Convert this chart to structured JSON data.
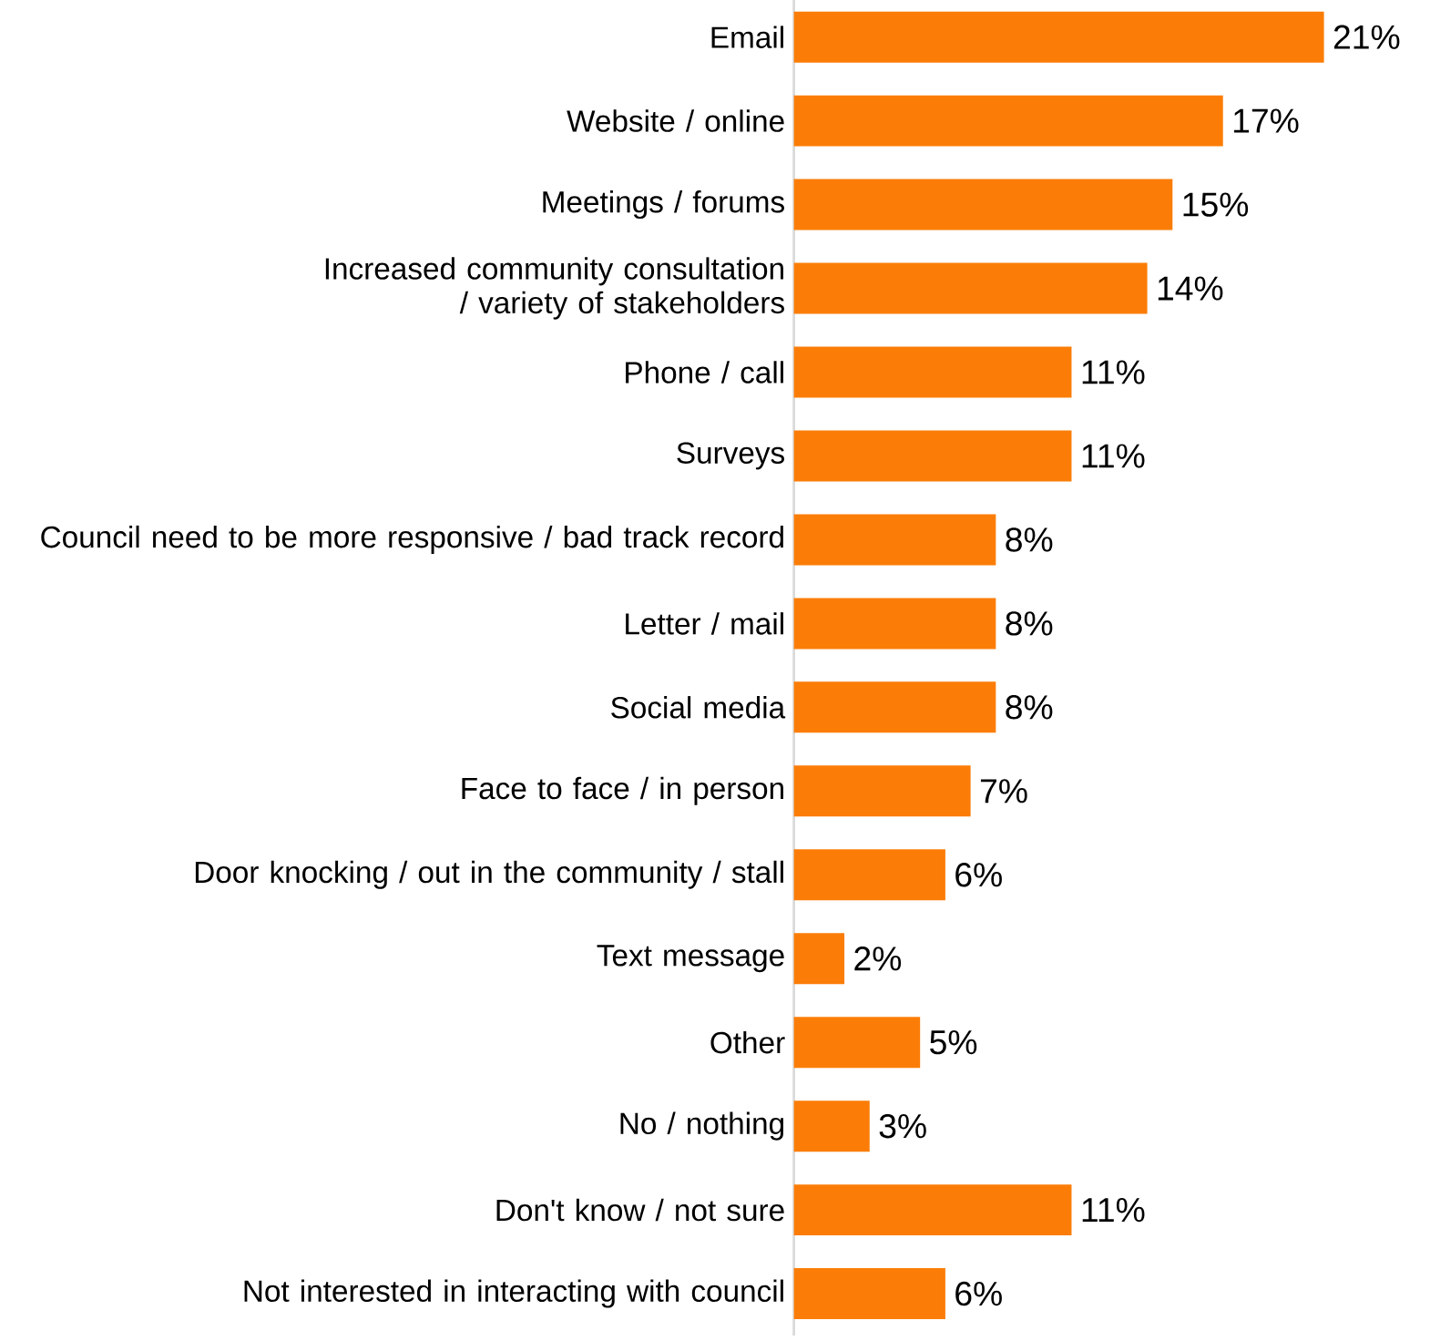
{
  "chart_data": {
    "type": "bar",
    "orientation": "horizontal",
    "color": "#fb7d07",
    "value_labels": [
      "21%",
      "17%",
      "15%",
      "14%",
      "11%",
      "11%",
      "8%",
      "8%",
      "8%",
      "7%",
      "6%",
      "2%",
      "5%",
      "3%",
      "11%",
      "6%"
    ],
    "categories": [
      "Email",
      "Website / online",
      "Meetings / forums",
      "Increased community consultation / variety of stakeholders",
      "Phone / call",
      "Surveys",
      "Council need to be more responsive / bad track record",
      "Letter / mail",
      "Social media",
      "Face to face / in person",
      "Door knocking / out in the community / stall",
      "Text message",
      "Other",
      "No / nothing",
      "Don't know / not sure",
      "Not interested in interacting with council"
    ],
    "values": [
      21,
      17,
      15,
      14,
      11,
      11,
      8,
      8,
      8,
      7,
      6,
      2,
      5,
      3,
      11,
      6
    ]
  }
}
